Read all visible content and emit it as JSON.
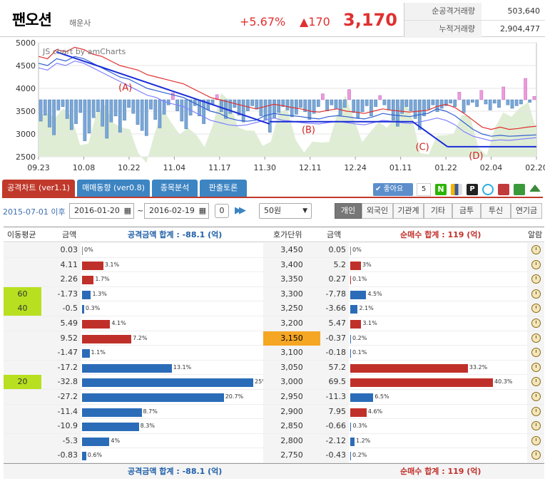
{
  "header": {
    "stock_name": "팬오션",
    "industry": "해운사",
    "change_pct": "+5.67%",
    "change_amt": "▲170",
    "price": "3,170",
    "volumes": [
      {
        "label": "순공격거래량",
        "value": "503,640"
      },
      {
        "label": "누적거래량",
        "value": "2,904,477"
      }
    ]
  },
  "chart_data": {
    "type": "line",
    "watermark": "JS chart by amCharts",
    "x_ticks": [
      "09.23",
      "10.08",
      "10.22",
      "11.04",
      "11.17",
      "11.30",
      "12.11",
      "12.24",
      "01.11",
      "01.22",
      "02.04",
      "02.20"
    ],
    "y_ticks": [
      5000,
      4500,
      4000,
      3500,
      3000,
      2500
    ],
    "ylim": [
      2500,
      5000
    ],
    "annotations": [
      "(A)",
      "(B)",
      "(C)",
      "(D)"
    ],
    "series": [
      {
        "color": "#e03030",
        "values": [
          4700,
          4650,
          4850,
          4800,
          4900,
          4850,
          4750,
          4700,
          4600,
          4500,
          4450,
          4400,
          4300,
          4250,
          4200,
          4150,
          4100,
          4000,
          3900,
          3800,
          3750,
          3700,
          3650,
          3600,
          3550,
          3600,
          3650,
          3620,
          3580,
          3550,
          3500,
          3480,
          3520,
          3550,
          3500,
          3480,
          3450,
          3500,
          3550,
          3520,
          3500,
          3480,
          3500,
          3520,
          3600,
          3650,
          3580,
          3450,
          3300,
          3150,
          3100,
          3150,
          3100,
          3120,
          3150,
          3170
        ]
      },
      {
        "color": "#3060d0",
        "values": [
          4550,
          4500,
          4650,
          4600,
          4700,
          4650,
          4550,
          4450,
          4350,
          4250,
          4200,
          4100,
          4000,
          3950,
          3900,
          3850,
          3800,
          3700,
          3600,
          3500,
          3450,
          3350,
          3300,
          3280,
          3300,
          3400,
          3450,
          3420,
          3400,
          3380,
          3350,
          3330,
          3380,
          3400,
          3380,
          3350,
          3330,
          3380,
          3450,
          3420,
          3400,
          3380,
          3420,
          3450,
          3550,
          3500,
          3400,
          3250,
          3100,
          3000,
          2950,
          2970,
          2950,
          2960,
          2970,
          2980
        ]
      },
      {
        "color": "#8080ff",
        "values": [
          4450,
          4400,
          4550,
          4500,
          4600,
          4550,
          4450,
          4350,
          4250,
          4150,
          4050,
          3950,
          3850,
          3800,
          3700,
          3650,
          3600,
          3500,
          3400,
          3300,
          3250,
          3200,
          3180,
          3200,
          3250,
          3300,
          3350,
          3300,
          3280,
          3250,
          3230,
          3220,
          3250,
          3280,
          3250,
          3220,
          3200,
          3250,
          3300,
          3280,
          3250,
          3230,
          3260,
          3300,
          3350,
          3300,
          3200,
          3050,
          2950,
          2900,
          2850,
          2870,
          2860,
          2880,
          2900,
          2920
        ]
      }
    ],
    "trend_lines": [
      {
        "points": [
          [
            1,
            4800
          ],
          [
            13,
            3220
          ]
        ]
      },
      {
        "points": [
          [
            13,
            3270
          ],
          [
            21,
            3270
          ]
        ]
      },
      {
        "points": [
          [
            21,
            3280
          ],
          [
            23,
            2720
          ]
        ]
      },
      {
        "points": [
          [
            23,
            2720
          ],
          [
            28,
            2720
          ]
        ]
      }
    ],
    "net_volume_bars": [
      -2.5,
      -1.8,
      -3.2,
      -4.1,
      -1.2,
      -0.8,
      -2.2,
      -3.5,
      -2.8,
      -1.5,
      -4.8,
      -3.9,
      -2.1,
      -1.4,
      -3.1,
      -4.5,
      -2.6,
      -1.9,
      -3.8,
      -2.4,
      -0.9,
      -1.6,
      -2.9,
      -3.6,
      -4.2,
      -1.1,
      -2.3,
      -3.3,
      -1.7,
      -0.6,
      0.8,
      -1.3,
      -2.5,
      -3.4,
      -1.8,
      -0.7,
      -1.9,
      -2.8,
      -1.2,
      -0.5,
      0.6,
      -1.4,
      -2.2,
      -1.6,
      -0.9,
      -1.8,
      -2.6,
      -1.3,
      -0.7,
      -1.1,
      -1.9,
      -2.4,
      -3.8,
      -2.1,
      -1.5,
      -0.8,
      -1.2,
      -2.0,
      -1.7,
      -0.9,
      -1.4,
      -2.3,
      -1.6,
      -0.8,
      0.7,
      -1.3,
      -0.6,
      -1.1,
      -1.8,
      -0.9,
      1.2,
      -1.5,
      -2.1,
      -1.4,
      -0.7,
      -1.9,
      -0.8,
      0.5,
      -0.6,
      -1.2,
      -2.4,
      -3.1,
      -1.6,
      -0.8,
      -1.3,
      -2.2,
      -3.5,
      -1.9,
      -1.1,
      -0.6,
      -1.4,
      -1.0,
      -0.7,
      -0.4,
      -0.8,
      0.9,
      -1.5,
      -0.6,
      -0.3,
      -0.8,
      1.1,
      -0.5,
      -1.2,
      -0.4,
      -0.9,
      1.5,
      -0.6,
      -1.0,
      -0.7,
      -0.5,
      2.5,
      -0.3,
      0.4
    ]
  },
  "tabs": [
    "공격차트 (ver1.1)",
    "매매동향 (ver0.8)",
    "종목분석",
    "판출토론"
  ],
  "like": {
    "label": "좋아요",
    "count": "5"
  },
  "controls": {
    "since": "2015-07-01 이후",
    "date_from": "2016-01-20",
    "date_to": "2016-02-19",
    "zero": "0",
    "period": "50원",
    "filters": [
      "개인",
      "외국인",
      "기관계",
      "기타",
      "금투",
      "투신",
      "연기금"
    ]
  },
  "table": {
    "headers": {
      "ma": "이동평균",
      "amt1": "금액",
      "sum1": "공격금액 합계 : -88.1 (억)",
      "price": "호가단위",
      "amt2": "금액",
      "sum2": "순매수 합계 : 119 (억)",
      "alarm": "알람"
    },
    "rows": [
      {
        "ma": "",
        "amt1": "0.03",
        "pct1": "0%",
        "price": "3,450",
        "amt2": "0.05",
        "pct2": "0%"
      },
      {
        "ma": "",
        "amt1": "4.11",
        "pct1": "3.1%",
        "price": "3,400",
        "amt2": "5.2",
        "pct2": "3%"
      },
      {
        "ma": "",
        "amt1": "2.26",
        "pct1": "1.7%",
        "price": "3,350",
        "amt2": "0.27",
        "pct2": "0.1%"
      },
      {
        "ma": "60",
        "amt1": "-1.73",
        "pct1": "1.3%",
        "price": "3,300",
        "amt2": "-7.78",
        "pct2": "4.5%"
      },
      {
        "ma": "40",
        "amt1": "-0.5",
        "pct1": "0.3%",
        "price": "3,250",
        "amt2": "-3.66",
        "pct2": "2.1%"
      },
      {
        "ma": "",
        "amt1": "5.49",
        "pct1": "4.1%",
        "price": "3,200",
        "amt2": "5.47",
        "pct2": "3.1%"
      },
      {
        "ma": "",
        "amt1": "9.52",
        "pct1": "7.2%",
        "price": "3,150",
        "amt2": "-0.37",
        "pct2": "0.2%",
        "current": true
      },
      {
        "ma": "",
        "amt1": "-1.47",
        "pct1": "1.1%",
        "price": "3,100",
        "amt2": "-0.18",
        "pct2": "0.1%"
      },
      {
        "ma": "",
        "amt1": "-17.2",
        "pct1": "13.1%",
        "price": "3,050",
        "amt2": "57.2",
        "pct2": "33.2%"
      },
      {
        "ma": "20",
        "amt1": "-32.8",
        "pct1": "25%",
        "price": "3,000",
        "amt2": "69.5",
        "pct2": "40.3%"
      },
      {
        "ma": "",
        "amt1": "-27.2",
        "pct1": "20.7%",
        "price": "2,950",
        "amt2": "-11.3",
        "pct2": "6.5%"
      },
      {
        "ma": "",
        "amt1": "-11.4",
        "pct1": "8.7%",
        "price": "2,900",
        "amt2": "7.95",
        "pct2": "4.6%"
      },
      {
        "ma": "",
        "amt1": "-10.9",
        "pct1": "8.3%",
        "price": "2,850",
        "amt2": "-0.66",
        "pct2": "0.3%"
      },
      {
        "ma": "",
        "amt1": "-5.3",
        "pct1": "4%",
        "price": "2,800",
        "amt2": "-2.12",
        "pct2": "1.2%"
      },
      {
        "ma": "",
        "amt1": "-0.83",
        "pct1": "0.6%",
        "price": "2,750",
        "amt2": "-0.43",
        "pct2": "0.2%"
      }
    ],
    "footer": {
      "sum1": "공격금액 합계 : -88.1 (억)",
      "sum2": "순매수 합계 : 119 (억)"
    }
  },
  "colors": {
    "up": "#e03030",
    "accent_tab": "#c0392b",
    "tab": "#3d84c2",
    "buy_bar": "#c0302a",
    "sell_bar": "#2b6cb8",
    "ma_highlight": "#b8e020",
    "current_price": "#f5a623"
  }
}
